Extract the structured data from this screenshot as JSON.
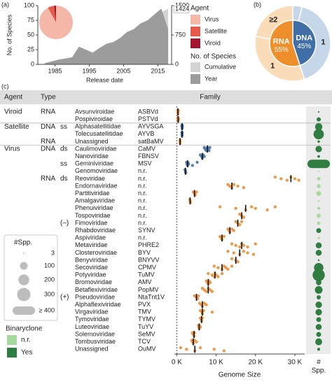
{
  "chart_data": [
    {
      "type": "area",
      "label": "(a)",
      "xlabel": "Release date",
      "ylabel": "No. of Species",
      "legend_title": "No. of Species",
      "x": [
        1982,
        1984,
        1986,
        1988,
        1990,
        1992,
        1994,
        1996,
        1998,
        2000,
        2002,
        2004,
        2006,
        2008,
        2010,
        2012,
        2014,
        2016,
        2018
      ],
      "series": [
        {
          "name": "Cumulative",
          "color": "#d4d4d4",
          "axis": "y2",
          "values": [
            2,
            10,
            25,
            45,
            70,
            110,
            170,
            220,
            280,
            350,
            420,
            500,
            600,
            720,
            860,
            1000,
            1150,
            1330,
            1424
          ]
        },
        {
          "name": "Year",
          "color": "#9c9c9c",
          "values": [
            2,
            5,
            8,
            10,
            12,
            30,
            25,
            20,
            28,
            35,
            38,
            45,
            55,
            60,
            70,
            75,
            85,
            95,
            60
          ]
        }
      ],
      "xlim": [
        1980,
        2019
      ],
      "xticks": [
        1985,
        1995,
        2005,
        2015
      ],
      "ylim": [
        0,
        100
      ],
      "yticks": [
        0,
        25,
        50,
        75,
        100
      ],
      "y2lim": [
        0,
        1500
      ],
      "y2ticks": [
        0,
        750,
        1500
      ],
      "annotation": 1424
    },
    {
      "type": "pie",
      "legend_title": "Agent",
      "categories": [
        "Virus",
        "Satellite",
        "Viroid"
      ],
      "values": [
        92,
        6,
        2
      ],
      "colors": [
        "#f5b7a8",
        "#e55a4b",
        "#a3172e"
      ]
    },
    {
      "type": "donut",
      "label": "(b)",
      "inner": {
        "categories": [
          "DNA",
          "RNA"
        ],
        "values": [
          45,
          55
        ],
        "value_labels": [
          "45%",
          "55%"
        ],
        "colors": [
          "#3f6fa6",
          "#ef8f2c"
        ]
      },
      "outer": {
        "categories": [
          null,
          "1",
          "1",
          "≥2"
        ],
        "values": [
          4,
          41,
          33,
          22
        ],
        "colors": [
          "#c6d7e9",
          "#c6d7e9",
          "#fadcb8",
          "#fadcb8"
        ]
      }
    },
    {
      "type": "strip",
      "label": "(c)",
      "headers": [
        "Agent",
        "Type",
        "Family"
      ],
      "xlabel": "Genome Size",
      "spp_header": [
        "#",
        "Spp."
      ],
      "type_colors": {
        "DNA": "#3f6fa6",
        "RNA": "#e8892b"
      },
      "xlim": [
        -600,
        32500
      ],
      "xticks": [
        {
          "value": 0,
          "label": "0 K"
        },
        {
          "value": 10000,
          "label": "10 K"
        },
        {
          "value": 20000,
          "label": "20 K"
        },
        {
          "value": 30000,
          "label": "30 K"
        }
      ],
      "size_legend": {
        "title": "#Spp.",
        "color": "#bdbdbd",
        "values": [
          3,
          100,
          200,
          300,
          {
            "value": 400,
            "label": "≥ 400"
          }
        ]
      },
      "binaryclone": {
        "title": "Binaryclone",
        "categories": [
          "n.r.",
          "Yes"
        ],
        "colors": [
          "#a8d99c",
          "#2f7d40"
        ]
      },
      "rows": [
        {
          "agent": "Viroid",
          "type": "RNA",
          "family": "Avsunviroidae",
          "abbrev": "ASBVd",
          "median": 300,
          "sizes": [
            250,
            300,
            340,
            400
          ],
          "spp": 4
        },
        {
          "family": "Pospiviroidae",
          "abbrev": "PSTVd",
          "median": 360,
          "sizes": [
            246,
            300,
            360,
            370,
            460
          ],
          "spp": 30
        },
        {
          "agent": "Satellite",
          "type": "DNA",
          "strand": "ss",
          "family": "Alphasatellitidae",
          "abbrev": "AYVSGA",
          "median": 1370,
          "sizes": [
            1300,
            1350,
            1370,
            1400,
            1420
          ],
          "spp": 90
        },
        {
          "family": "Tolecusatellitidae",
          "abbrev": "AYVB",
          "median": 1350,
          "sizes": [
            1300,
            1340,
            1350,
            1380
          ],
          "spp": 180
        },
        {
          "type": "RNA",
          "family": "Unassigned",
          "abbrev": "satBaMV",
          "median": 840,
          "sizes": [
            800,
            840,
            870
          ],
          "spp": 10
        },
        {
          "agent": "Virus",
          "type": "DNA",
          "strand": "ds",
          "family": "Caulimoviridae",
          "abbrev": "CaMV",
          "median": 7800,
          "sizes": [
            7000,
            7200,
            7500,
            7800,
            8000,
            8200,
            8400
          ],
          "spp": 70
        },
        {
          "family": "Nanoviridae",
          "abbrev": "FBNSV",
          "median": 6500,
          "sizes": [
            6000,
            6300,
            6500,
            6700,
            7000
          ],
          "spp": 12
        },
        {
          "strand": "ss",
          "family": "Geminiviridae",
          "abbrev": "MSV",
          "median": 2750,
          "sizes": [
            2500,
            2600,
            2750,
            2800,
            3000,
            4000,
            5200
          ],
          "spp": 450
        },
        {
          "family": "Genomoviridae",
          "abbrev": "n.r.",
          "median": 2200,
          "sizes": [
            2100,
            2200,
            2300
          ],
          "spp": 3
        },
        {
          "type": "RNA",
          "strand": "ds",
          "family": "Reoviridae",
          "abbrev": "n.r.",
          "median": 29000,
          "sizes": [
            25000,
            26500,
            28000,
            29000,
            30000,
            31000
          ],
          "spp": 20
        },
        {
          "family": "Endornaviridae",
          "abbrev": "n.r.",
          "median": 14000,
          "sizes": [
            13000,
            13500,
            14000,
            14500,
            15500,
            17000
          ],
          "spp": 25
        },
        {
          "family": "Partitiviridae",
          "abbrev": "n.r.",
          "median": 4500,
          "sizes": [
            4200,
            4500,
            4700,
            5000
          ],
          "spp": 40
        },
        {
          "family": "Amalgaviridae",
          "abbrev": "n.r.",
          "median": 3400,
          "sizes": [
            3300,
            3400,
            3450
          ],
          "spp": 5
        },
        {
          "family": "Phenuiviridae",
          "abbrev": "n.r.",
          "median": 17500,
          "sizes": [
            11000,
            15000,
            17500,
            19000,
            20000,
            23000,
            25000
          ],
          "spp": 15
        },
        {
          "family": "Tospoviridae",
          "abbrev": "n.r.",
          "median": 16500,
          "sizes": [
            16000,
            16500,
            17000
          ],
          "spp": 30
        },
        {
          "strand": "(–)",
          "family": "Fimoviridae",
          "abbrev": "n.r.",
          "median": 15500,
          "sizes": [
            15000,
            15500,
            16000,
            16500
          ],
          "spp": 20
        },
        {
          "family": "Rhabdoviridae",
          "abbrev": "SYNV",
          "median": 13500,
          "sizes": [
            13000,
            13300,
            13500,
            14000,
            14500
          ],
          "spp": 40
        },
        {
          "family": "Aspiviridae",
          "abbrev": "n.r.",
          "median": 11500,
          "sizes": [
            11000,
            11300,
            11500,
            12000
          ],
          "spp": 8
        },
        {
          "family": "Metaviridae",
          "abbrev": "PHRE2",
          "median": 16500,
          "sizes": [
            14000,
            15000,
            16000,
            16500,
            17000,
            18000,
            20000
          ],
          "spp": 60
        },
        {
          "family": "Closteroviridae",
          "abbrev": "BYV",
          "median": 16000,
          "sizes": [
            13000,
            14500,
            16000,
            17000,
            18000,
            19500
          ],
          "spp": 60
        },
        {
          "family": "Benyviridae",
          "abbrev": "BNYVV",
          "median": 15000,
          "sizes": [
            14000,
            15000,
            15500
          ],
          "spp": 5
        },
        {
          "family": "Secoviridae",
          "abbrev": "CPMV",
          "median": 11500,
          "sizes": [
            9500,
            10500,
            11500,
            12000,
            12500,
            13000,
            14000
          ],
          "spp": 150
        },
        {
          "family": "Potyviridae",
          "abbrev": "TuMV",
          "median": 9700,
          "sizes": [
            8000,
            9000,
            9500,
            9700,
            10000,
            10500,
            11500
          ],
          "spp": 250
        },
        {
          "family": "Bromoviridae",
          "abbrev": "AMV",
          "median": 8000,
          "sizes": [
            7500,
            7800,
            8000,
            8200,
            8500
          ],
          "spp": 50
        },
        {
          "family": "Betaflexiviridae",
          "abbrev": "PopMV",
          "median": 8000,
          "sizes": [
            6500,
            7000,
            7500,
            8000,
            8500,
            9000
          ],
          "spp": 100
        },
        {
          "strand": "(+)",
          "family": "Pseudoviridae",
          "abbrev": "NtaTnt1V",
          "median": 5000,
          "sizes": [
            4500,
            5000,
            5300,
            5500
          ],
          "spp": 30
        },
        {
          "family": "Alphaflexiviridae",
          "abbrev": "PVX",
          "median": 6500,
          "sizes": [
            5800,
            6200,
            6500,
            7000,
            7500
          ],
          "spp": 70
        },
        {
          "family": "Virgaviridae",
          "abbrev": "TMV",
          "median": 6500,
          "sizes": [
            6000,
            6400,
            6500,
            6800,
            9000
          ],
          "spp": 70
        },
        {
          "family": "Tymoviridae",
          "abbrev": "TYMV",
          "median": 6300,
          "sizes": [
            6000,
            6200,
            6300,
            6500
          ],
          "spp": 40
        },
        {
          "family": "Luteoviridae",
          "abbrev": "TuYV",
          "median": 5700,
          "sizes": [
            5500,
            5600,
            5700,
            5800,
            6000
          ],
          "spp": 60
        },
        {
          "family": "Solemoviridae",
          "abbrev": "SeMV",
          "median": 4400,
          "sizes": [
            4000,
            4200,
            4400,
            4500
          ],
          "spp": 40
        },
        {
          "family": "Tombusviridae",
          "abbrev": "TCV",
          "median": 4200,
          "sizes": [
            3800,
            4000,
            4200,
            4500,
            5000
          ],
          "spp": 80
        },
        {
          "family": "Unassigned",
          "abbrev": "OuMV",
          "median": 4600,
          "sizes": [
            1000,
            2500,
            4600,
            6000,
            9500,
            12000
          ],
          "spp": 15
        }
      ]
    }
  ]
}
